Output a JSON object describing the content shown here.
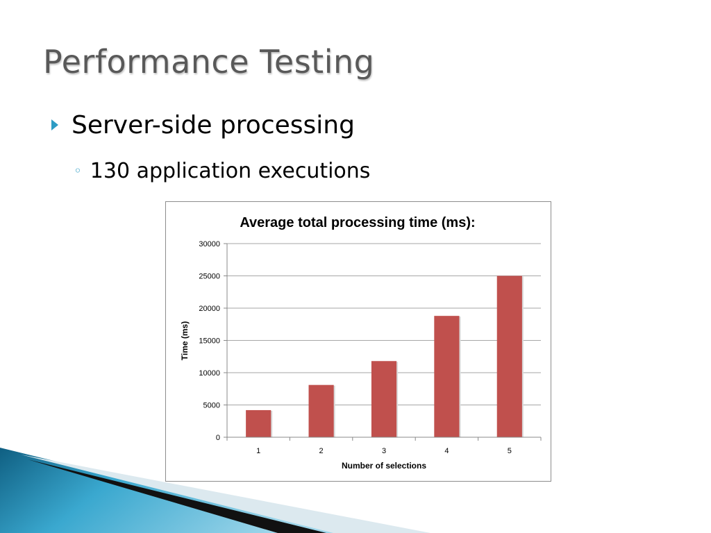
{
  "slide": {
    "title": "Performance Testing",
    "bullet_level1": "Server-side processing",
    "bullet_level2": "130 application executions"
  },
  "colors": {
    "accent": "#2e9cc4",
    "bar": "#c0504d",
    "title_text": "#595959"
  },
  "chart_data": {
    "type": "bar",
    "title": "Average total processing time (ms):",
    "xlabel": "Number of selections",
    "ylabel": "Time (ms)",
    "categories": [
      "1",
      "2",
      "3",
      "4",
      "5"
    ],
    "values": [
      4200,
      8100,
      11800,
      18800,
      25000
    ],
    "ylim": [
      0,
      30000
    ],
    "yticks": [
      0,
      5000,
      10000,
      15000,
      20000,
      25000,
      30000
    ],
    "grid": true,
    "legend": "none"
  }
}
